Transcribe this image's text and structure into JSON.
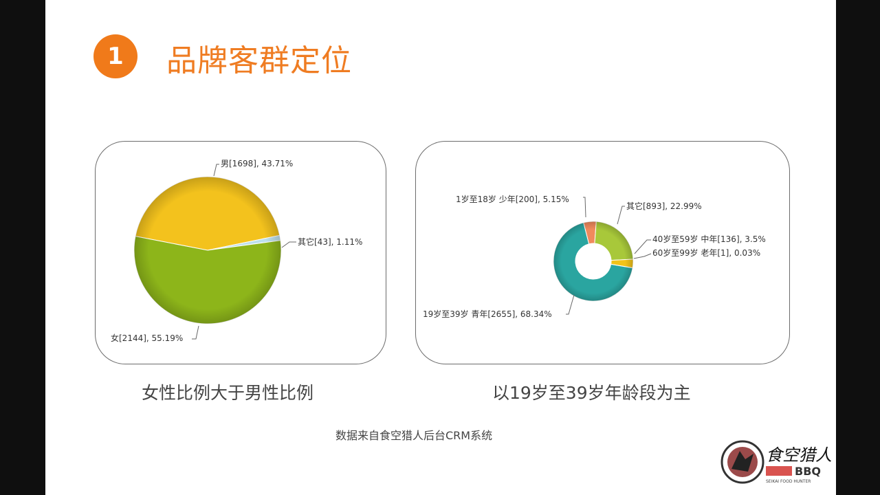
{
  "slide": {
    "section_number": "1",
    "title": "品牌客群定位",
    "source_note": "数据来自食空猎人后台CRM系统"
  },
  "captions": {
    "gender": "女性比例大于男性比例",
    "age": "以19岁至39岁年龄段为主"
  },
  "logo": {
    "text": "食空猎人",
    "sub_text": "BBQ",
    "tagline": "SEIKAI FOOD HUNTER"
  },
  "chart_data": [
    {
      "type": "pie",
      "categories": [
        "男",
        "其它",
        "女"
      ],
      "values": [
        1698,
        43,
        2144
      ],
      "percents": [
        43.71,
        1.11,
        55.19
      ],
      "labels": [
        "男[1698], 43.71%",
        "其它[43], 1.11%",
        "女[2144], 55.19%"
      ],
      "colors": [
        "#f3c21d",
        "#bde0ec",
        "#8db51a"
      ]
    },
    {
      "type": "pie",
      "subtype": "donut",
      "categories": [
        "1岁至18岁 少年",
        "其它",
        "40岁至59岁 中年",
        "60岁至99岁 老年",
        "19岁至39岁 青年"
      ],
      "values": [
        200,
        893,
        136,
        1,
        2655
      ],
      "percents": [
        5.15,
        22.99,
        3.5,
        0.03,
        68.34
      ],
      "labels": [
        "1岁至18岁 少年[200], 5.15%",
        "其它[893], 22.99%",
        "40岁至59岁 中年[136], 3.5%",
        "60岁至99岁 老年[1], 0.03%",
        "19岁至39岁 青年[2655], 68.34%"
      ],
      "colors": [
        "#f08a5d",
        "#a8c83a",
        "#f2c319",
        "#d9cf5a",
        "#2aa5a0"
      ]
    }
  ]
}
